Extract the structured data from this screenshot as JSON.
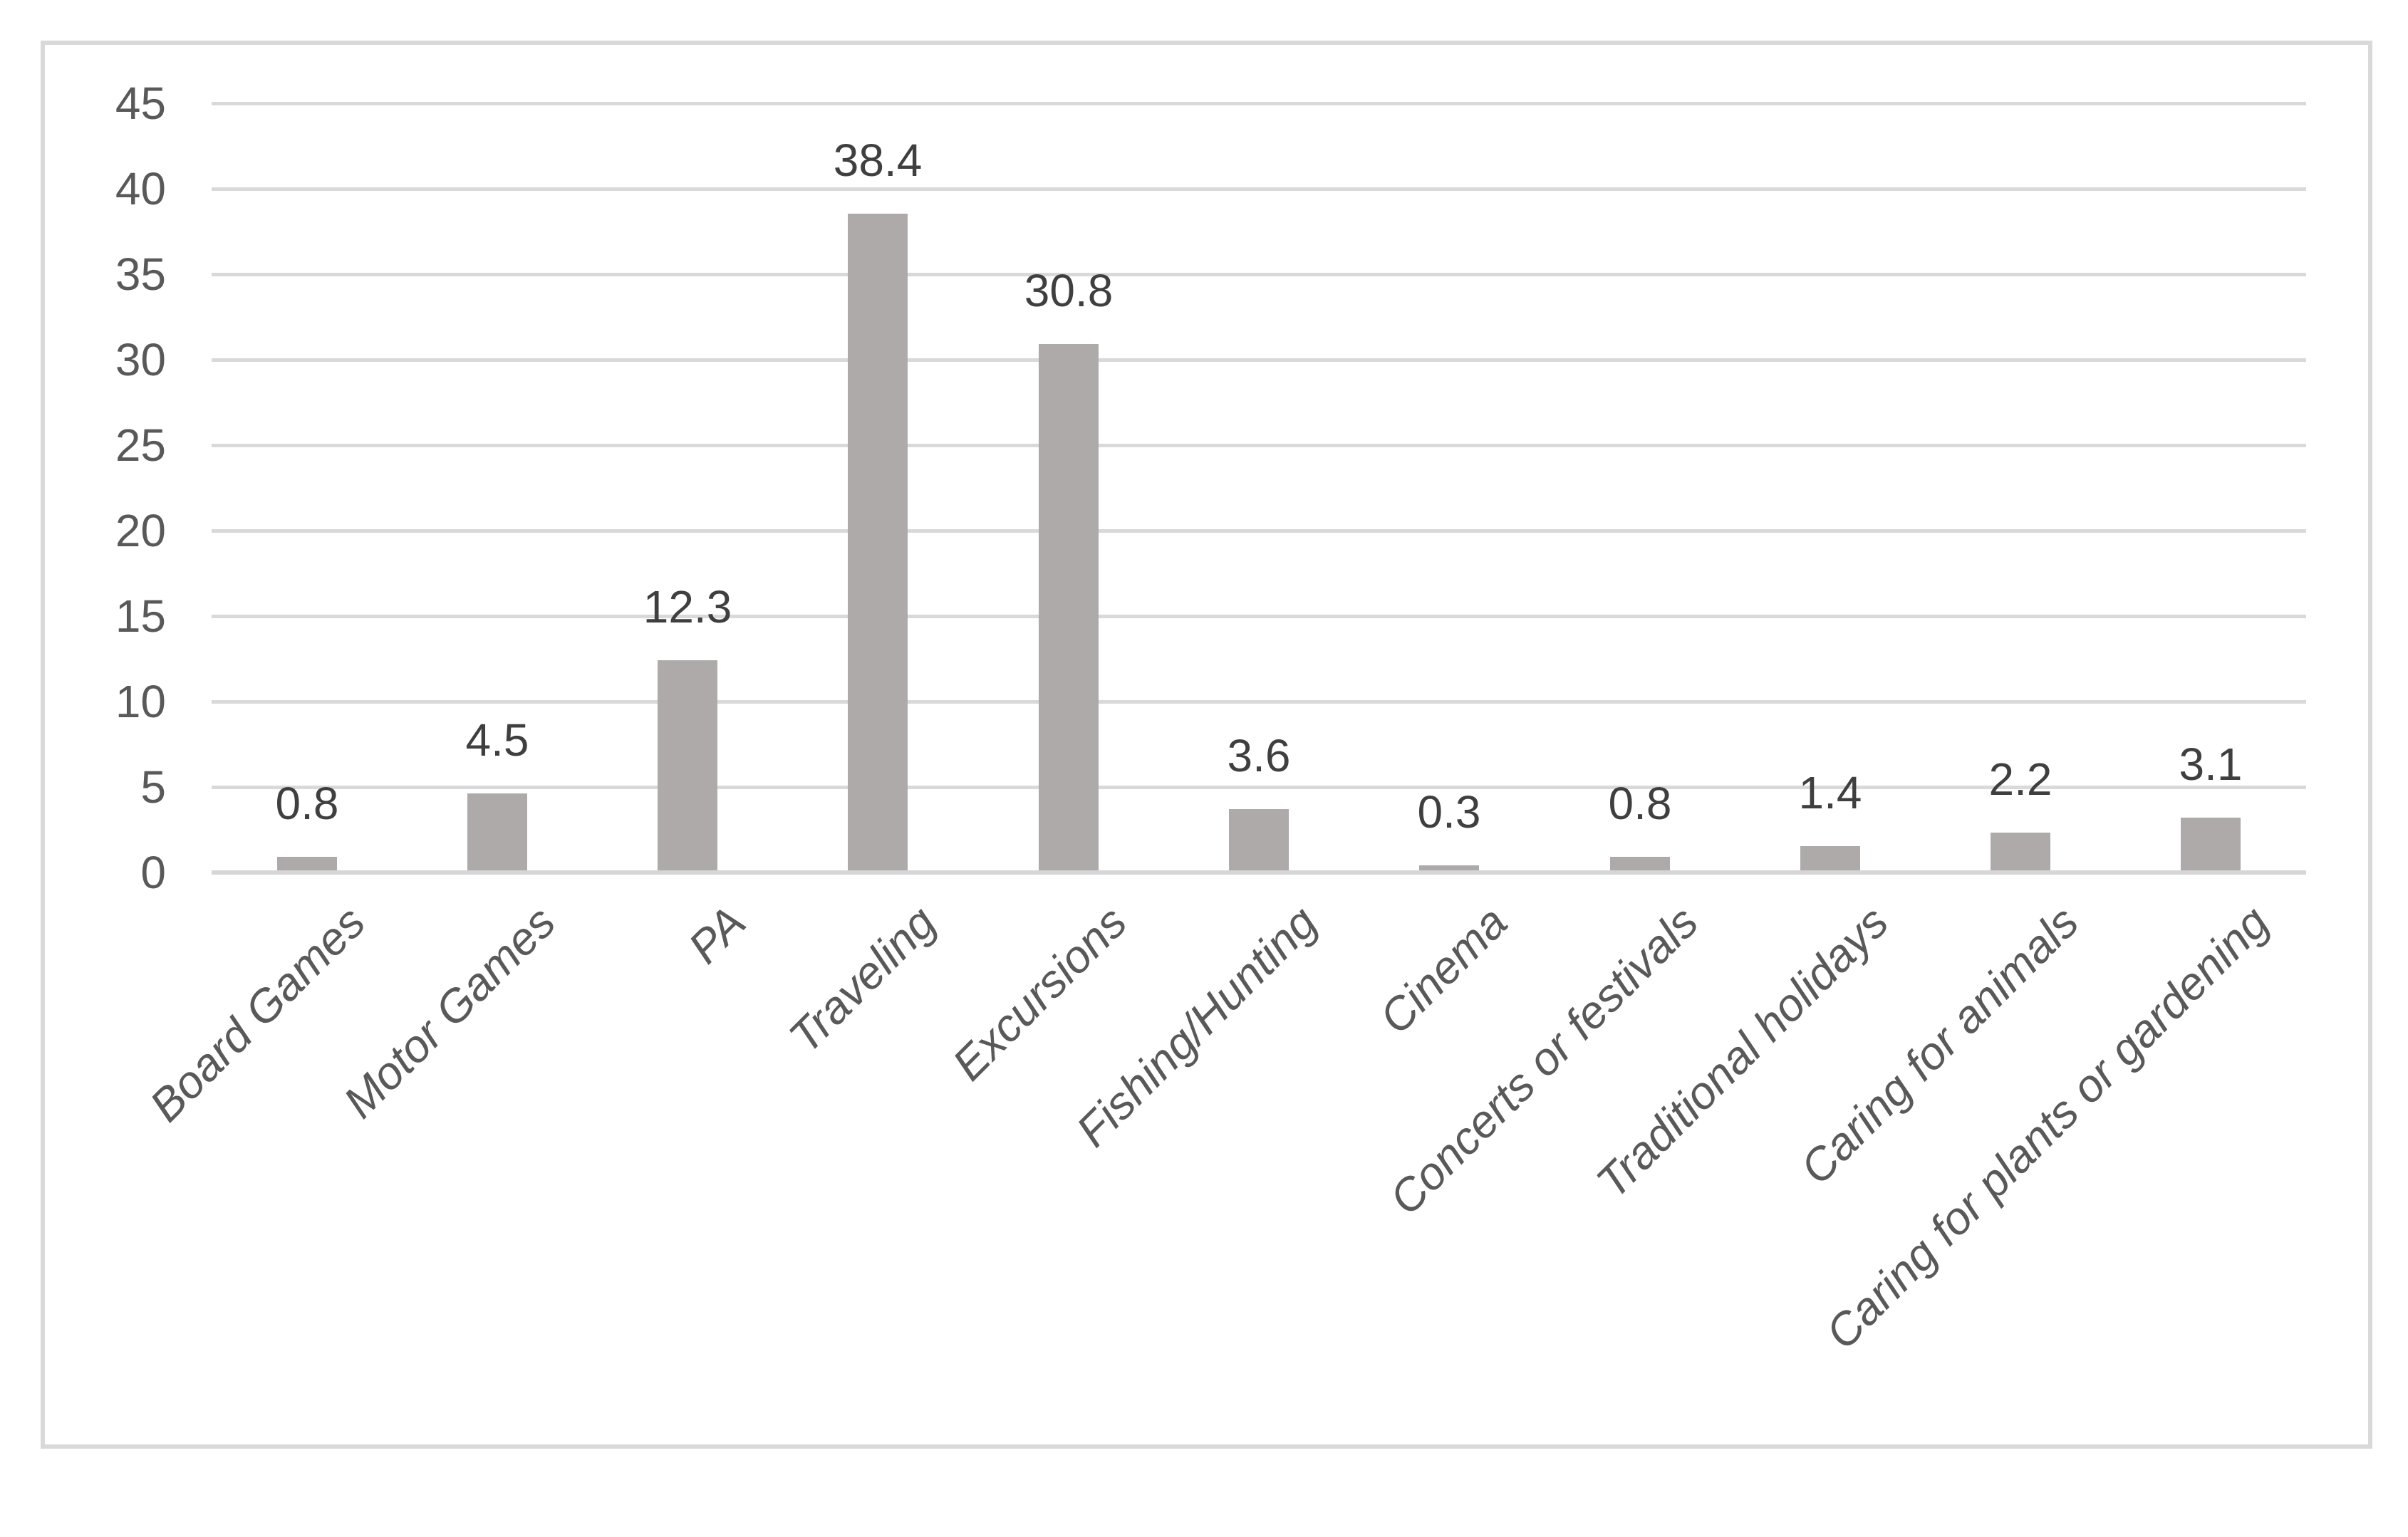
{
  "chart_data": {
    "type": "bar",
    "title": "",
    "xlabel": "",
    "ylabel": "",
    "categories": [
      "Board Games",
      "Motor Games",
      "PA",
      "Traveling",
      "Excursions",
      "Fishing/Hunting",
      "Cinema",
      "Concerts or festivals",
      "Traditional holidays",
      "Caring for animals",
      "Caring for plants or gardening"
    ],
    "values": [
      0.8,
      4.5,
      12.3,
      38.4,
      30.8,
      3.6,
      0.3,
      0.8,
      1.4,
      2.2,
      3.1
    ],
    "value_labels": [
      "0.8",
      "4.5",
      "12.3",
      "38.4",
      "30.8",
      "3.6",
      "0.3",
      "0.8",
      "1.4",
      "2.2",
      "3.1"
    ],
    "ytick_labels": [
      "0",
      "5",
      "10",
      "15",
      "20",
      "25",
      "30",
      "35",
      "40",
      "45"
    ],
    "yticks": [
      0,
      5,
      10,
      15,
      20,
      25,
      30,
      35,
      40,
      45
    ],
    "ylim": [
      0,
      45
    ],
    "grid": "horizontal",
    "legend": "none",
    "category_label_style": "italic, rotated 45deg",
    "colors": {
      "bar": "#aeaaaa",
      "gridline": "#d9d9d9",
      "axis_line": "#d6d6d6",
      "tick_label": "#595959",
      "category_label": "#595959",
      "value_label": "#3f3f3f",
      "frame_border": "#d9d9d9",
      "background": "#ffffff"
    }
  }
}
